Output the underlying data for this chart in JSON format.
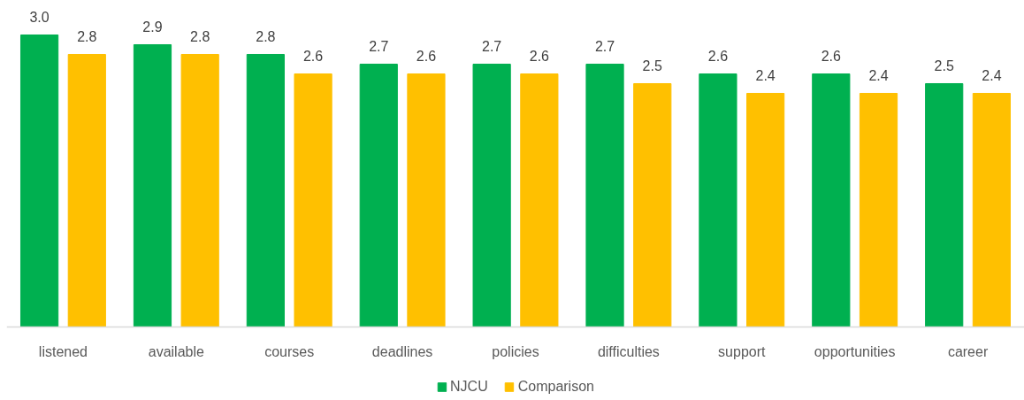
{
  "chart_data": {
    "type": "bar",
    "categories": [
      "listened",
      "available",
      "courses",
      "deadlines",
      "policies",
      "difficulties",
      "support",
      "opportunities",
      "career"
    ],
    "series": [
      {
        "name": "NJCU",
        "color": "#00b050",
        "values": [
          3.0,
          2.9,
          2.8,
          2.7,
          2.7,
          2.7,
          2.6,
          2.6,
          2.5
        ],
        "value_labels": [
          "3.0",
          "2.9",
          "2.8",
          "2.7",
          "2.7",
          "2.7",
          "2.6",
          "2.6",
          "2.5"
        ]
      },
      {
        "name": "Comparison",
        "color": "#ffc000",
        "values": [
          2.8,
          2.8,
          2.6,
          2.6,
          2.6,
          2.5,
          2.4,
          2.4,
          2.4
        ],
        "value_labels": [
          "2.8",
          "2.8",
          "2.6",
          "2.6",
          "2.6",
          "2.5",
          "2.4",
          "2.4",
          "2.4"
        ]
      }
    ],
    "legend": "bottom",
    "tick_labels": "x"
  }
}
